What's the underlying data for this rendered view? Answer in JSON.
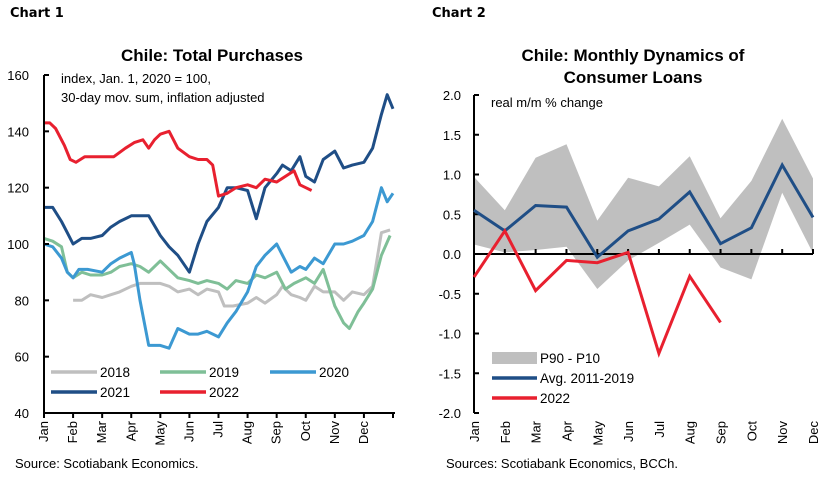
{
  "labels": {
    "chart1": "Chart 1",
    "chart2": "Chart 2"
  },
  "chart_data": [
    {
      "type": "line",
      "title": "Chile: Total Purchases",
      "subtitle": [
        "index, Jan. 1, 2020 = 100,",
        "30-day mov. sum, inflation adjusted"
      ],
      "xlabel": "",
      "ylabel": "",
      "ylim": [
        40,
        160
      ],
      "yticks": [
        "40",
        "60",
        "80",
        "100",
        "120",
        "140",
        "160"
      ],
      "ytick_values": [
        40,
        60,
        80,
        100,
        120,
        140,
        160
      ],
      "categories": [
        "Jan",
        "Feb",
        "Mar",
        "Apr",
        "May",
        "Jun",
        "Jul",
        "Aug",
        "Sep",
        "Oct",
        "Nov",
        "Dec"
      ],
      "x_unit": "months since Jan 1",
      "xlim": [
        0,
        12
      ],
      "legend_position": "bottom-left",
      "source": "Source: Scotiabank Economics.",
      "series": [
        {
          "name": "2018",
          "color": "#BFBFBF",
          "x": [
            1.0,
            1.3,
            1.6,
            2.0,
            2.3,
            2.6,
            3.0,
            3.3,
            3.6,
            4.0,
            4.3,
            4.6,
            5.0,
            5.3,
            5.6,
            6.0,
            6.2,
            6.5,
            7.0,
            7.3,
            7.6,
            8.0,
            8.2,
            8.5,
            8.8,
            9.0,
            9.3,
            9.6,
            10.0,
            10.3,
            10.6,
            11.0,
            11.3,
            11.6,
            11.9
          ],
          "y": [
            80,
            80,
            82,
            81,
            82,
            83,
            85,
            86,
            86,
            86,
            85,
            83,
            84,
            82,
            84,
            83,
            78,
            78,
            79,
            81,
            79,
            82,
            85,
            82,
            81,
            80,
            85,
            83,
            83,
            80,
            83,
            82,
            85,
            104,
            105
          ]
        },
        {
          "name": "2019",
          "color": "#7FBF97",
          "x": [
            0,
            0.3,
            0.6,
            0.8,
            1.0,
            1.3,
            1.6,
            2.0,
            2.3,
            2.6,
            3.0,
            3.3,
            3.6,
            4.0,
            4.3,
            4.6,
            5.0,
            5.3,
            5.6,
            6.0,
            6.3,
            6.6,
            7.0,
            7.3,
            7.6,
            8.0,
            8.3,
            8.6,
            9.0,
            9.3,
            9.6,
            10.0,
            10.3,
            10.5,
            10.8,
            11.0,
            11.3,
            11.6,
            11.9
          ],
          "y": [
            102,
            101,
            99,
            90,
            88,
            90,
            89,
            89,
            90,
            92,
            93,
            92,
            90,
            94,
            91,
            88,
            87,
            86,
            87,
            86,
            84,
            87,
            86,
            89,
            88,
            90,
            84,
            86,
            88,
            86,
            91,
            78,
            72,
            70,
            76,
            79,
            84,
            96,
            103
          ]
        },
        {
          "name": "2020",
          "color": "#3C99D2",
          "x": [
            0,
            0.3,
            0.6,
            0.8,
            1.0,
            1.2,
            1.5,
            2.0,
            2.3,
            2.6,
            3.0,
            3.1,
            3.3,
            3.6,
            4.0,
            4.3,
            4.6,
            5.0,
            5.3,
            5.6,
            6.0,
            6.3,
            6.6,
            7.0,
            7.3,
            7.6,
            8.0,
            8.2,
            8.5,
            8.8,
            9.0,
            9.3,
            9.6,
            10.0,
            10.3,
            10.6,
            11.0,
            11.3,
            11.6,
            11.8,
            12.0
          ],
          "y": [
            100,
            99,
            95,
            90,
            88,
            91,
            91,
            90,
            93,
            95,
            97,
            93,
            80,
            64,
            64,
            63,
            70,
            68,
            68,
            69,
            67,
            72,
            76,
            83,
            92,
            96,
            100,
            96,
            90,
            92,
            91,
            95,
            93,
            100,
            100,
            101,
            103,
            108,
            120,
            115,
            118
          ]
        },
        {
          "name": "2021",
          "color": "#1F4E86",
          "x": [
            0,
            0.3,
            0.6,
            0.8,
            1.0,
            1.3,
            1.6,
            2.0,
            2.3,
            2.6,
            3.0,
            3.3,
            3.6,
            4.0,
            4.3,
            4.6,
            5.0,
            5.3,
            5.6,
            6.0,
            6.3,
            6.6,
            7.0,
            7.3,
            7.6,
            8.0,
            8.2,
            8.5,
            8.8,
            9.0,
            9.3,
            9.6,
            10.0,
            10.3,
            10.6,
            11.0,
            11.3,
            11.6,
            11.8,
            12.0
          ],
          "y": [
            113,
            113,
            108,
            104,
            100,
            102,
            102,
            103,
            106,
            108,
            110,
            110,
            110,
            103,
            99,
            96,
            90,
            100,
            108,
            113,
            120,
            120,
            119,
            109,
            120,
            125,
            128,
            126,
            131,
            124,
            122,
            130,
            133,
            127,
            128,
            129,
            134,
            146,
            153,
            148
          ]
        },
        {
          "name": "2022",
          "color": "#E8202F",
          "x": [
            0,
            0.2,
            0.4,
            0.7,
            0.9,
            1.1,
            1.4,
            1.7,
            2.0,
            2.4,
            2.8,
            3.1,
            3.4,
            3.6,
            3.8,
            4.0,
            4.3,
            4.6,
            5.0,
            5.3,
            5.6,
            5.8,
            6.0,
            6.3,
            6.6,
            7.0,
            7.3,
            7.6,
            8.0,
            8.3,
            8.6,
            8.8,
            9.0,
            9.2
          ],
          "y": [
            143,
            143,
            141,
            135,
            130,
            129,
            131,
            131,
            131,
            131,
            134,
            136,
            137,
            134,
            137,
            139,
            140,
            134,
            131,
            130,
            130,
            128,
            117,
            118,
            120,
            121,
            120,
            123,
            122,
            124,
            126,
            121,
            120,
            119
          ]
        }
      ]
    },
    {
      "type": "line",
      "title": "Chile: Monthly Dynamics of Consumer Loans",
      "title_lines": [
        "Chile: Monthly Dynamics of",
        "Consumer Loans"
      ],
      "subtitle": "real m/m % change",
      "xlabel": "",
      "ylabel": "",
      "ylim": [
        -2.0,
        2.0
      ],
      "yticks": [
        "-2.0",
        "-1.5",
        "-1.0",
        "-0.5",
        "0.0",
        "0.5",
        "1.0",
        "1.5",
        "2.0"
      ],
      "ytick_values": [
        -2.0,
        -1.5,
        -1.0,
        -0.5,
        0.0,
        0.5,
        1.0,
        1.5,
        2.0
      ],
      "categories": [
        "Jan",
        "Feb",
        "Mar",
        "Apr",
        "May",
        "Jun",
        "Jul",
        "Aug",
        "Sep",
        "Oct",
        "Nov",
        "Dec"
      ],
      "legend_position": "bottom-left",
      "source": "Sources: Scotiabank Economics, BCCh.",
      "band": {
        "name": "P90 - P10",
        "color": "#BFBFBF",
        "upper": [
          0.97,
          0.55,
          1.21,
          1.38,
          0.42,
          0.96,
          0.85,
          1.23,
          0.45,
          0.92,
          1.7,
          0.95
        ],
        "lower": [
          0.12,
          0.02,
          0.05,
          0.09,
          -0.44,
          -0.08,
          0.14,
          0.37,
          -0.17,
          -0.32,
          0.77,
          0.01
        ]
      },
      "series": [
        {
          "name": "Avg. 2011-2019",
          "color": "#1F4E86",
          "values": [
            0.55,
            0.29,
            0.61,
            0.59,
            -0.04,
            0.29,
            0.44,
            0.78,
            0.13,
            0.33,
            1.12,
            0.46
          ]
        },
        {
          "name": "2022",
          "color": "#E8202F",
          "values": [
            -0.29,
            0.29,
            -0.46,
            -0.08,
            -0.11,
            0.02,
            -1.25,
            -0.28,
            -0.86,
            null,
            null,
            null
          ]
        }
      ]
    }
  ]
}
